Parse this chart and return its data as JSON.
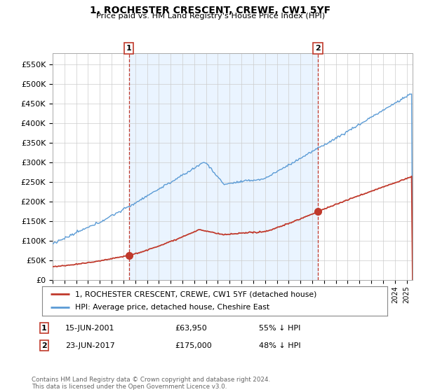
{
  "title": "1, ROCHESTER CRESCENT, CREWE, CW1 5YF",
  "subtitle": "Price paid vs. HM Land Registry's House Price Index (HPI)",
  "legend_line1": "1, ROCHESTER CRESCENT, CREWE, CW1 5YF (detached house)",
  "legend_line2": "HPI: Average price, detached house, Cheshire East",
  "annotation1_label": "1",
  "annotation1_date": "15-JUN-2001",
  "annotation1_price": "£63,950",
  "annotation1_hpi": "55% ↓ HPI",
  "annotation2_label": "2",
  "annotation2_date": "23-JUN-2017",
  "annotation2_price": "£175,000",
  "annotation2_hpi": "48% ↓ HPI",
  "footnote": "Contains HM Land Registry data © Crown copyright and database right 2024.\nThis data is licensed under the Open Government Licence v3.0.",
  "sale1_year": 2001.46,
  "sale1_price": 63950,
  "sale2_year": 2017.48,
  "sale2_price": 175000,
  "hpi_color": "#5b9bd5",
  "hpi_fill_color": "#ddeeff",
  "property_color": "#c0392b",
  "sale_marker_color": "#c0392b",
  "vline_color": "#c0392b",
  "ylim_min": 0,
  "ylim_max": 580000,
  "ytick_step": 50000,
  "xmin": 1995,
  "xmax": 2025.5
}
